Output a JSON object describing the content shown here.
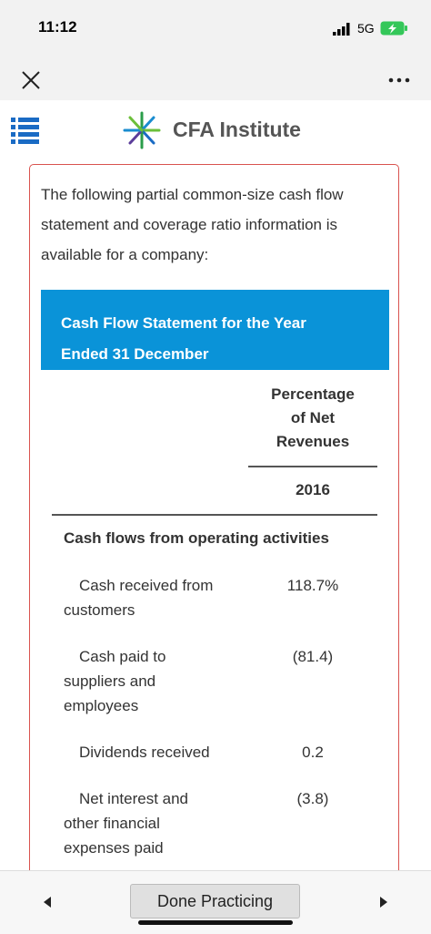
{
  "status_bar": {
    "time": "11:12",
    "network": "5G"
  },
  "header": {
    "brand": "CFA Institute"
  },
  "question": {
    "intro": "The following partial common-size cash flow statement and coverage ratio information is available for a company:",
    "table": {
      "title": "Cash Flow Statement for the Year Ended 31 December",
      "column_header": "Percentage of Net Revenues",
      "year": "2016",
      "section": "Cash flows from operating activities",
      "rows": [
        [
          "Cash received from customers",
          "118.7%"
        ],
        [
          "Cash paid to suppliers and employees",
          "(81.4)"
        ],
        [
          "Dividends received",
          "0.2"
        ],
        [
          "Net interest and other financial expenses paid",
          "(3.8)"
        ]
      ]
    }
  },
  "footer": {
    "button": "Done Practicing"
  }
}
